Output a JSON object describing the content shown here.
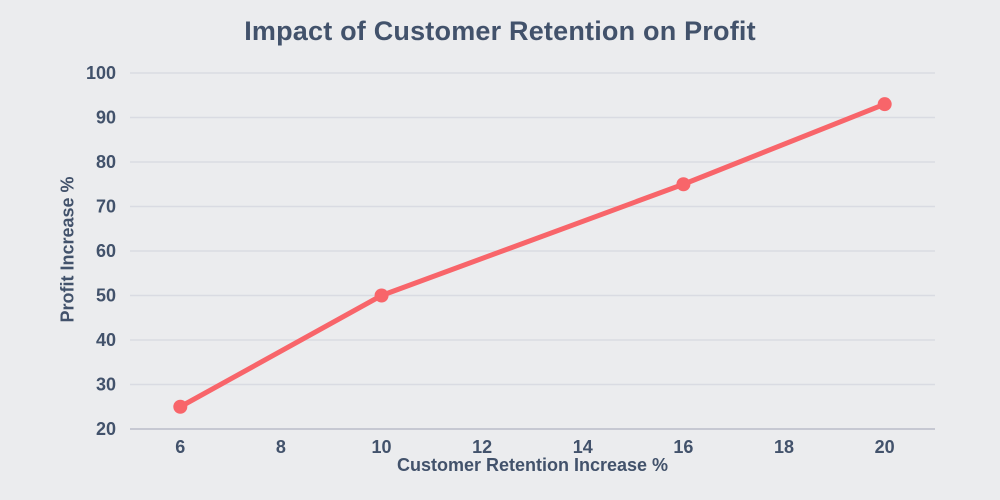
{
  "chart_data": {
    "type": "line",
    "title": "Impact of Customer Retention on Profit",
    "xlabel": "Customer Retention Increase %",
    "ylabel": "Profit Increase %",
    "x": [
      6,
      10,
      16,
      20
    ],
    "values": [
      25,
      50,
      75,
      93
    ],
    "xlim": [
      5,
      21
    ],
    "ylim": [
      20,
      100
    ],
    "xticks": [
      6,
      8,
      10,
      12,
      14,
      16,
      18,
      20
    ],
    "yticks": [
      20,
      30,
      40,
      50,
      60,
      70,
      80,
      90,
      100
    ],
    "grid": "horizontal-only",
    "legend": "none",
    "marker": "circle"
  },
  "colors": {
    "background": "#ebecee",
    "text": "#42526b",
    "gridline": "#d9dbe2",
    "axis_line": "#c6c8d2",
    "line": "#f8656a"
  }
}
